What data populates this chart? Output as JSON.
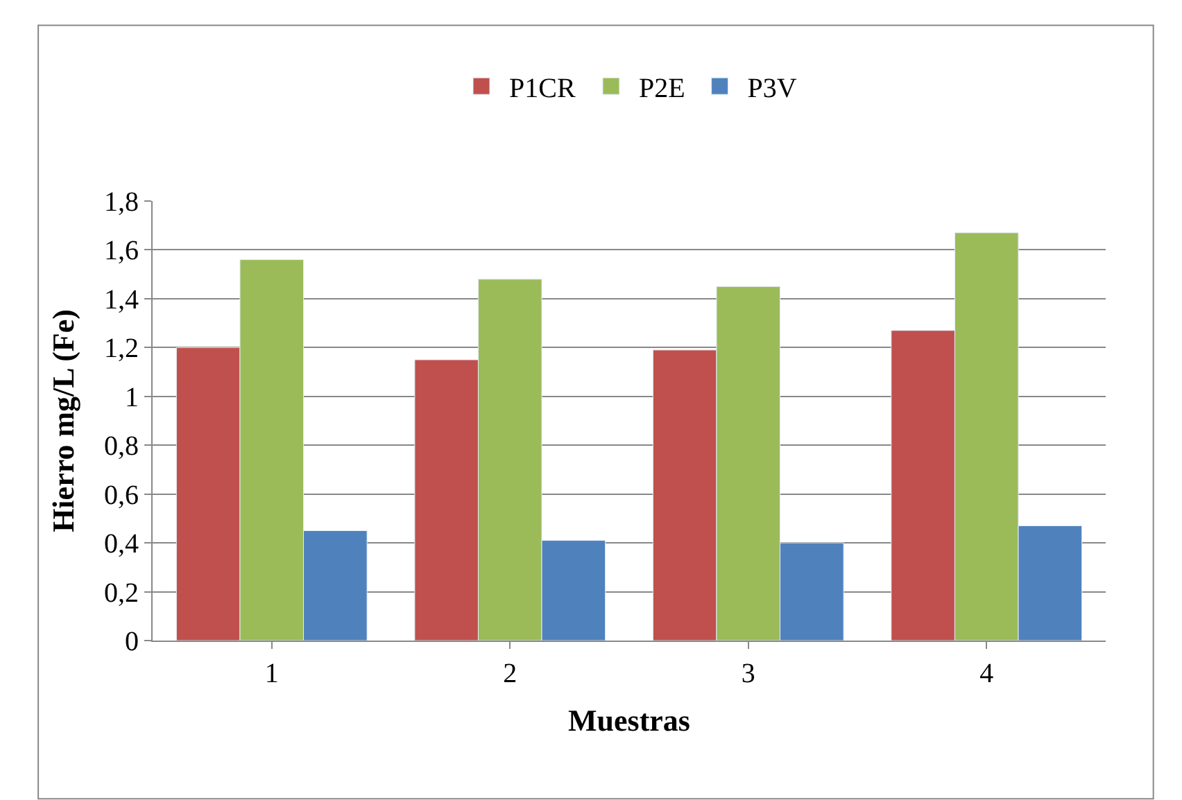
{
  "chart_data": {
    "type": "bar",
    "xlabel": "Muestras",
    "ylabel": "Hierro mg/L (Fe)",
    "categories": [
      "1",
      "2",
      "3",
      "4"
    ],
    "series": [
      {
        "name": "P1CR",
        "color": "#c0504d",
        "values": [
          1.2,
          1.15,
          1.19,
          1.27
        ]
      },
      {
        "name": "P2E",
        "color": "#9bbb59",
        "values": [
          1.56,
          1.48,
          1.45,
          1.67
        ]
      },
      {
        "name": "P3V",
        "color": "#4f81bd",
        "values": [
          0.45,
          0.41,
          0.4,
          0.47
        ]
      }
    ],
    "ylim": [
      0,
      1.8
    ],
    "yticks": [
      0,
      {
        "value": 0.2,
        "label": "0,2"
      },
      {
        "value": 0.4,
        "label": "0,4"
      },
      {
        "value": 0.6,
        "label": "0,6"
      },
      {
        "value": 0.8,
        "label": "0,8"
      },
      1,
      {
        "value": 1.2,
        "label": "1,2"
      },
      {
        "value": 1.4,
        "label": "1,4"
      },
      {
        "value": 1.6,
        "label": "1,6"
      },
      {
        "value": 1.8,
        "label": "1,8"
      }
    ],
    "grid": "y",
    "legend": "top"
  }
}
